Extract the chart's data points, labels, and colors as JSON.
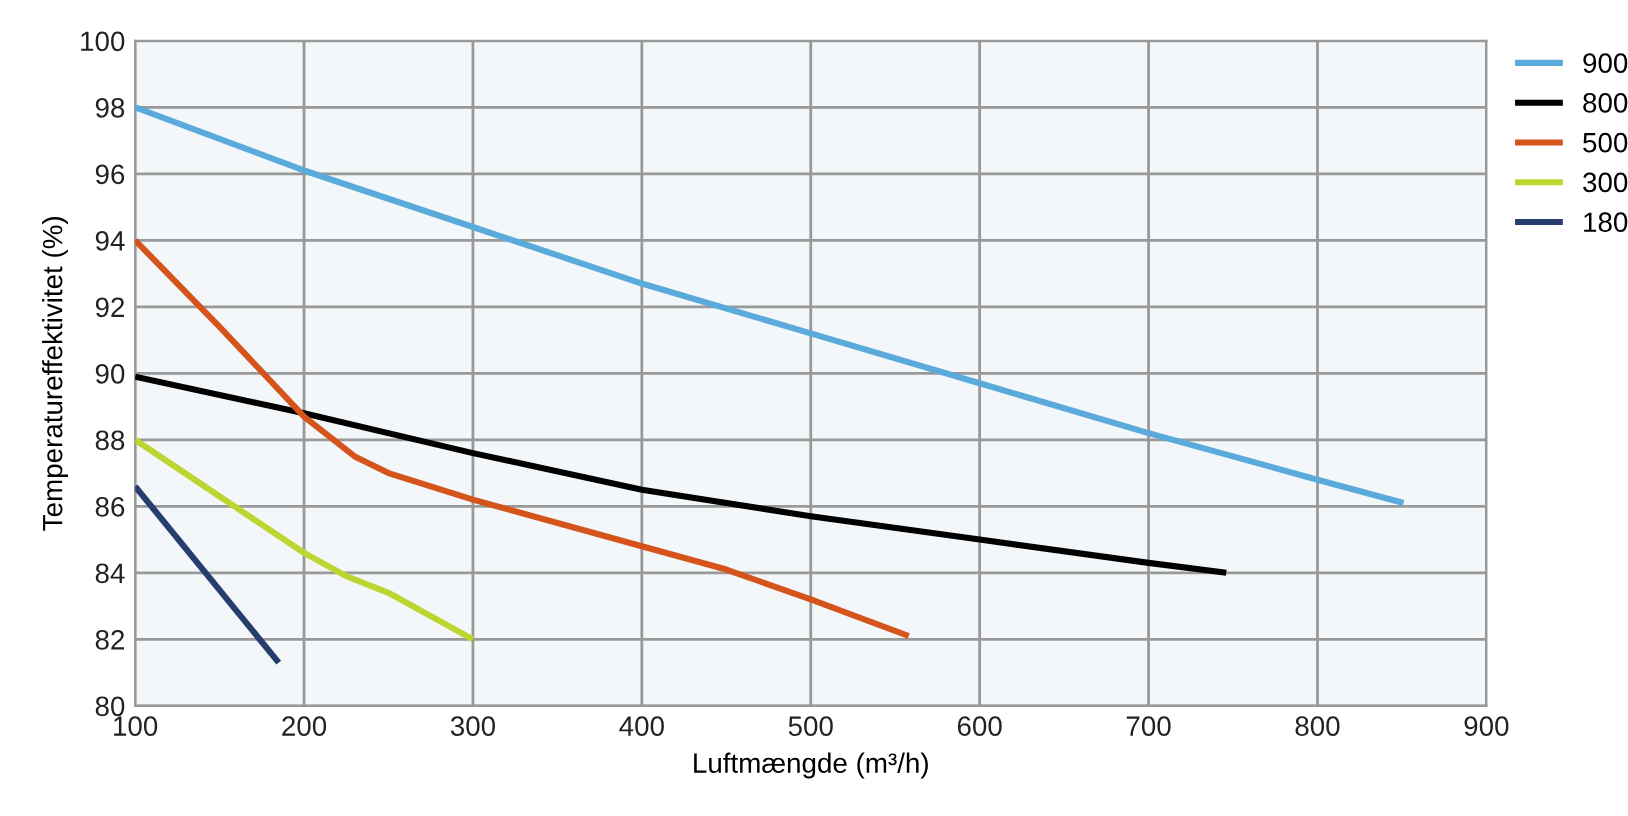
{
  "chart_data": {
    "type": "line",
    "xlabel": "Luftmængde (m³/h)",
    "ylabel": "Temperatureffektivitet (%)",
    "xlim": [
      100,
      900
    ],
    "xticks": [
      100,
      200,
      300,
      400,
      500,
      600,
      700,
      800,
      900
    ],
    "ylim": [
      80,
      100
    ],
    "yticks": [
      80,
      82,
      84,
      86,
      88,
      90,
      92,
      94,
      96,
      98,
      100
    ],
    "grid": true,
    "legend": "top right",
    "marker": "none",
    "line_style": "solid",
    "series": [
      {
        "name": "900",
        "color": "#5aaadb",
        "x": [
          100,
          200,
          300,
          400,
          500,
          600,
          700,
          800,
          851
        ],
        "values": [
          98,
          96.1,
          94.4,
          92.7,
          91.2,
          89.7,
          88.2,
          86.8,
          86.1
        ]
      },
      {
        "name": "800",
        "color": "#000000",
        "x": [
          100,
          200,
          300,
          400,
          500,
          600,
          700,
          746
        ],
        "values": [
          89.9,
          88.8,
          87.6,
          86.5,
          85.7,
          85.0,
          84.3,
          84.0
        ]
      },
      {
        "name": "500",
        "color": "#d4541c",
        "x": [
          100,
          150,
          200,
          230,
          250,
          300,
          400,
          450,
          500,
          558
        ],
        "values": [
          94.0,
          91.4,
          88.7,
          87.5,
          87.0,
          86.2,
          84.8,
          84.1,
          83.2,
          82.1
        ]
      },
      {
        "name": "300",
        "color": "#bed531",
        "x": [
          100,
          150,
          200,
          225,
          250,
          300
        ],
        "values": [
          88.0,
          86.3,
          84.6,
          83.9,
          83.4,
          82.0
        ]
      },
      {
        "name": "180",
        "color": "#263d6e",
        "x": [
          100,
          185
        ],
        "values": [
          86.6,
          81.3
        ]
      }
    ]
  }
}
